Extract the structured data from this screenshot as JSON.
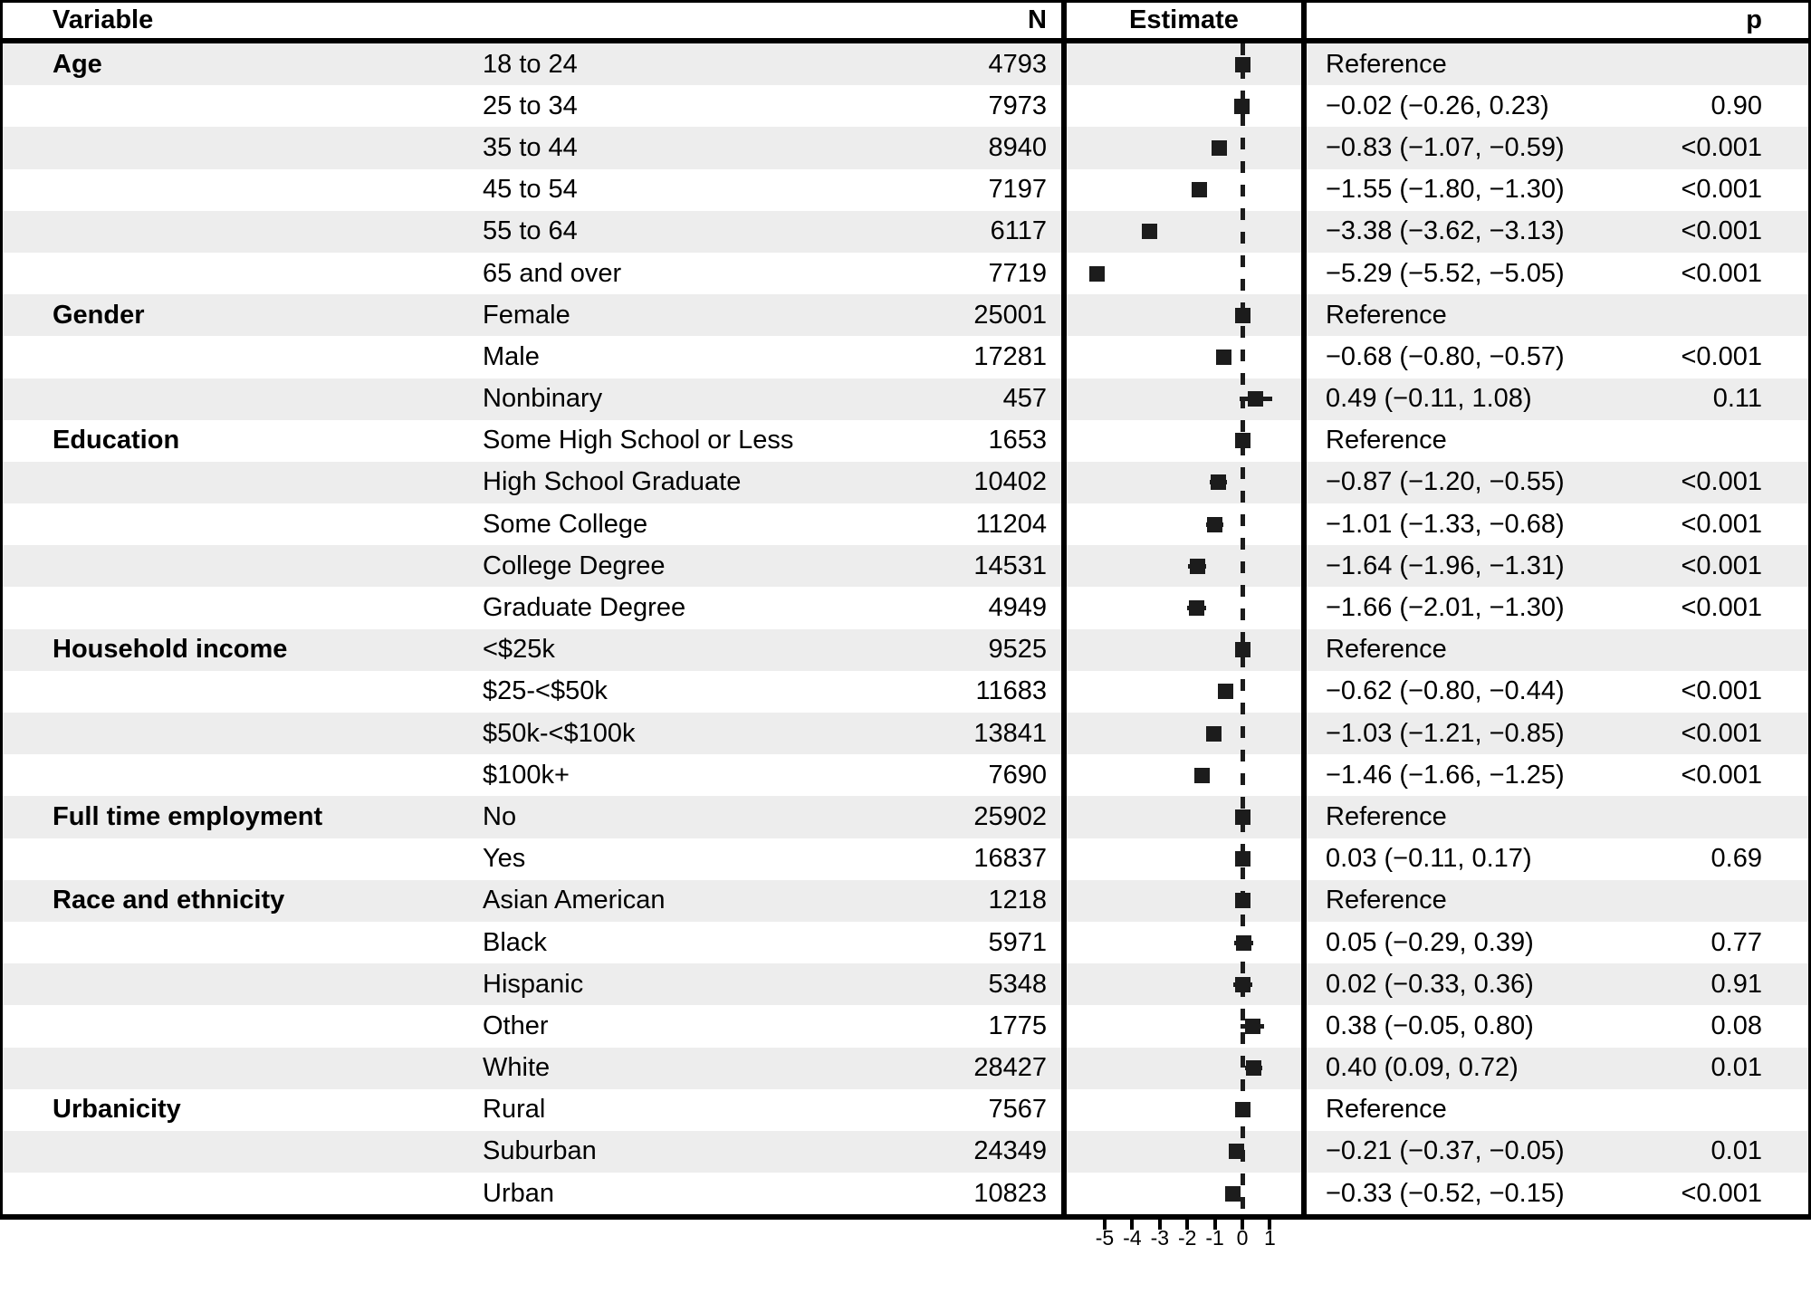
{
  "header": {
    "variable": "Variable",
    "n": "N",
    "estimate": "Estimate",
    "p": "p"
  },
  "colors": {
    "stripe": "#ededed",
    "rule": "#000000",
    "marker": "#1c1c1c",
    "zero_line": "#1c1c1c",
    "background": "#ffffff"
  },
  "axis": {
    "tick_values": [
      -5,
      -4,
      -3,
      -2,
      -1,
      0,
      1
    ],
    "tick_labels": [
      "-5",
      "-4",
      "-3",
      "-2",
      "-1",
      "0",
      "1"
    ]
  },
  "chart_data": {
    "type": "forest",
    "title": "",
    "xlabel": "",
    "zero_reference_line": 0,
    "x_axis_ticks": [
      -5,
      -4,
      -3,
      -2,
      -1,
      0,
      1
    ],
    "legend_position": "none",
    "rows": [
      {
        "group": "Age",
        "level": "18 to 24",
        "n": "4793",
        "estimate": null,
        "ci_low": null,
        "ci_high": null,
        "estimate_label": "Reference",
        "p": ""
      },
      {
        "group": "",
        "level": "25 to 34",
        "n": "7973",
        "estimate": -0.02,
        "ci_low": -0.26,
        "ci_high": 0.23,
        "estimate_label": "−0.02 (−0.26, 0.23)",
        "p": "0.90"
      },
      {
        "group": "",
        "level": "35 to 44",
        "n": "8940",
        "estimate": -0.83,
        "ci_low": -1.07,
        "ci_high": -0.59,
        "estimate_label": "−0.83 (−1.07, −0.59)",
        "p": "<0.001"
      },
      {
        "group": "",
        "level": "45 to 54",
        "n": "7197",
        "estimate": -1.55,
        "ci_low": -1.8,
        "ci_high": -1.3,
        "estimate_label": "−1.55 (−1.80, −1.30)",
        "p": "<0.001"
      },
      {
        "group": "",
        "level": "55 to 64",
        "n": "6117",
        "estimate": -3.38,
        "ci_low": -3.62,
        "ci_high": -3.13,
        "estimate_label": "−3.38 (−3.62, −3.13)",
        "p": "<0.001"
      },
      {
        "group": "",
        "level": "65 and over",
        "n": "7719",
        "estimate": -5.29,
        "ci_low": -5.52,
        "ci_high": -5.05,
        "estimate_label": "−5.29 (−5.52, −5.05)",
        "p": "<0.001"
      },
      {
        "group": "Gender",
        "level": "Female",
        "n": "25001",
        "estimate": null,
        "ci_low": null,
        "ci_high": null,
        "estimate_label": "Reference",
        "p": ""
      },
      {
        "group": "",
        "level": "Male",
        "n": "17281",
        "estimate": -0.68,
        "ci_low": -0.8,
        "ci_high": -0.57,
        "estimate_label": "−0.68 (−0.80, −0.57)",
        "p": "<0.001"
      },
      {
        "group": "",
        "level": "Nonbinary",
        "n": "457",
        "estimate": 0.49,
        "ci_low": -0.11,
        "ci_high": 1.08,
        "estimate_label": "0.49 (−0.11, 1.08)",
        "p": "0.11"
      },
      {
        "group": "Education",
        "level": "Some High School or Less",
        "n": "1653",
        "estimate": null,
        "ci_low": null,
        "ci_high": null,
        "estimate_label": "Reference",
        "p": ""
      },
      {
        "group": "",
        "level": "High School Graduate",
        "n": "10402",
        "estimate": -0.87,
        "ci_low": -1.2,
        "ci_high": -0.55,
        "estimate_label": "−0.87 (−1.20, −0.55)",
        "p": "<0.001"
      },
      {
        "group": "",
        "level": "Some College",
        "n": "11204",
        "estimate": -1.01,
        "ci_low": -1.33,
        "ci_high": -0.68,
        "estimate_label": "−1.01 (−1.33, −0.68)",
        "p": "<0.001"
      },
      {
        "group": "",
        "level": "College Degree",
        "n": "14531",
        "estimate": -1.64,
        "ci_low": -1.96,
        "ci_high": -1.31,
        "estimate_label": "−1.64 (−1.96, −1.31)",
        "p": "<0.001"
      },
      {
        "group": "",
        "level": "Graduate Degree",
        "n": "4949",
        "estimate": -1.66,
        "ci_low": -2.01,
        "ci_high": -1.3,
        "estimate_label": "−1.66 (−2.01, −1.30)",
        "p": "<0.001"
      },
      {
        "group": "Household income",
        "level": "<$25k",
        "n": "9525",
        "estimate": null,
        "ci_low": null,
        "ci_high": null,
        "estimate_label": "Reference",
        "p": ""
      },
      {
        "group": "",
        "level": "$25-<$50k",
        "n": "11683",
        "estimate": -0.62,
        "ci_low": -0.8,
        "ci_high": -0.44,
        "estimate_label": "−0.62 (−0.80, −0.44)",
        "p": "<0.001"
      },
      {
        "group": "",
        "level": "$50k-<$100k",
        "n": "13841",
        "estimate": -1.03,
        "ci_low": -1.21,
        "ci_high": -0.85,
        "estimate_label": "−1.03 (−1.21, −0.85)",
        "p": "<0.001"
      },
      {
        "group": "",
        "level": "$100k+",
        "n": "7690",
        "estimate": -1.46,
        "ci_low": -1.66,
        "ci_high": -1.25,
        "estimate_label": "−1.46 (−1.66, −1.25)",
        "p": "<0.001"
      },
      {
        "group": "Full time employment",
        "level": "No",
        "n": "25902",
        "estimate": null,
        "ci_low": null,
        "ci_high": null,
        "estimate_label": "Reference",
        "p": ""
      },
      {
        "group": "",
        "level": "Yes",
        "n": "16837",
        "estimate": 0.03,
        "ci_low": -0.11,
        "ci_high": 0.17,
        "estimate_label": "0.03 (−0.11, 0.17)",
        "p": "0.69"
      },
      {
        "group": "Race and ethnicity",
        "level": "Asian American",
        "n": "1218",
        "estimate": null,
        "ci_low": null,
        "ci_high": null,
        "estimate_label": "Reference",
        "p": ""
      },
      {
        "group": "",
        "level": "Black",
        "n": "5971",
        "estimate": 0.05,
        "ci_low": -0.29,
        "ci_high": 0.39,
        "estimate_label": "0.05 (−0.29, 0.39)",
        "p": "0.77"
      },
      {
        "group": "",
        "level": "Hispanic",
        "n": "5348",
        "estimate": 0.02,
        "ci_low": -0.33,
        "ci_high": 0.36,
        "estimate_label": "0.02 (−0.33, 0.36)",
        "p": "0.91"
      },
      {
        "group": "",
        "level": "Other",
        "n": "1775",
        "estimate": 0.38,
        "ci_low": -0.05,
        "ci_high": 0.8,
        "estimate_label": "0.38 (−0.05, 0.80)",
        "p": "0.08"
      },
      {
        "group": "",
        "level": "White",
        "n": "28427",
        "estimate": 0.4,
        "ci_low": 0.09,
        "ci_high": 0.72,
        "estimate_label": "0.40 (0.09, 0.72)",
        "p": "0.01"
      },
      {
        "group": "Urbanicity",
        "level": "Rural",
        "n": "7567",
        "estimate": null,
        "ci_low": null,
        "ci_high": null,
        "estimate_label": "Reference",
        "p": ""
      },
      {
        "group": "",
        "level": "Suburban",
        "n": "24349",
        "estimate": -0.21,
        "ci_low": -0.37,
        "ci_high": -0.05,
        "estimate_label": "−0.21 (−0.37, −0.05)",
        "p": "0.01"
      },
      {
        "group": "",
        "level": "Urban",
        "n": "10823",
        "estimate": -0.33,
        "ci_low": -0.52,
        "ci_high": -0.15,
        "estimate_label": "−0.33 (−0.52, −0.15)",
        "p": "<0.001"
      }
    ]
  }
}
